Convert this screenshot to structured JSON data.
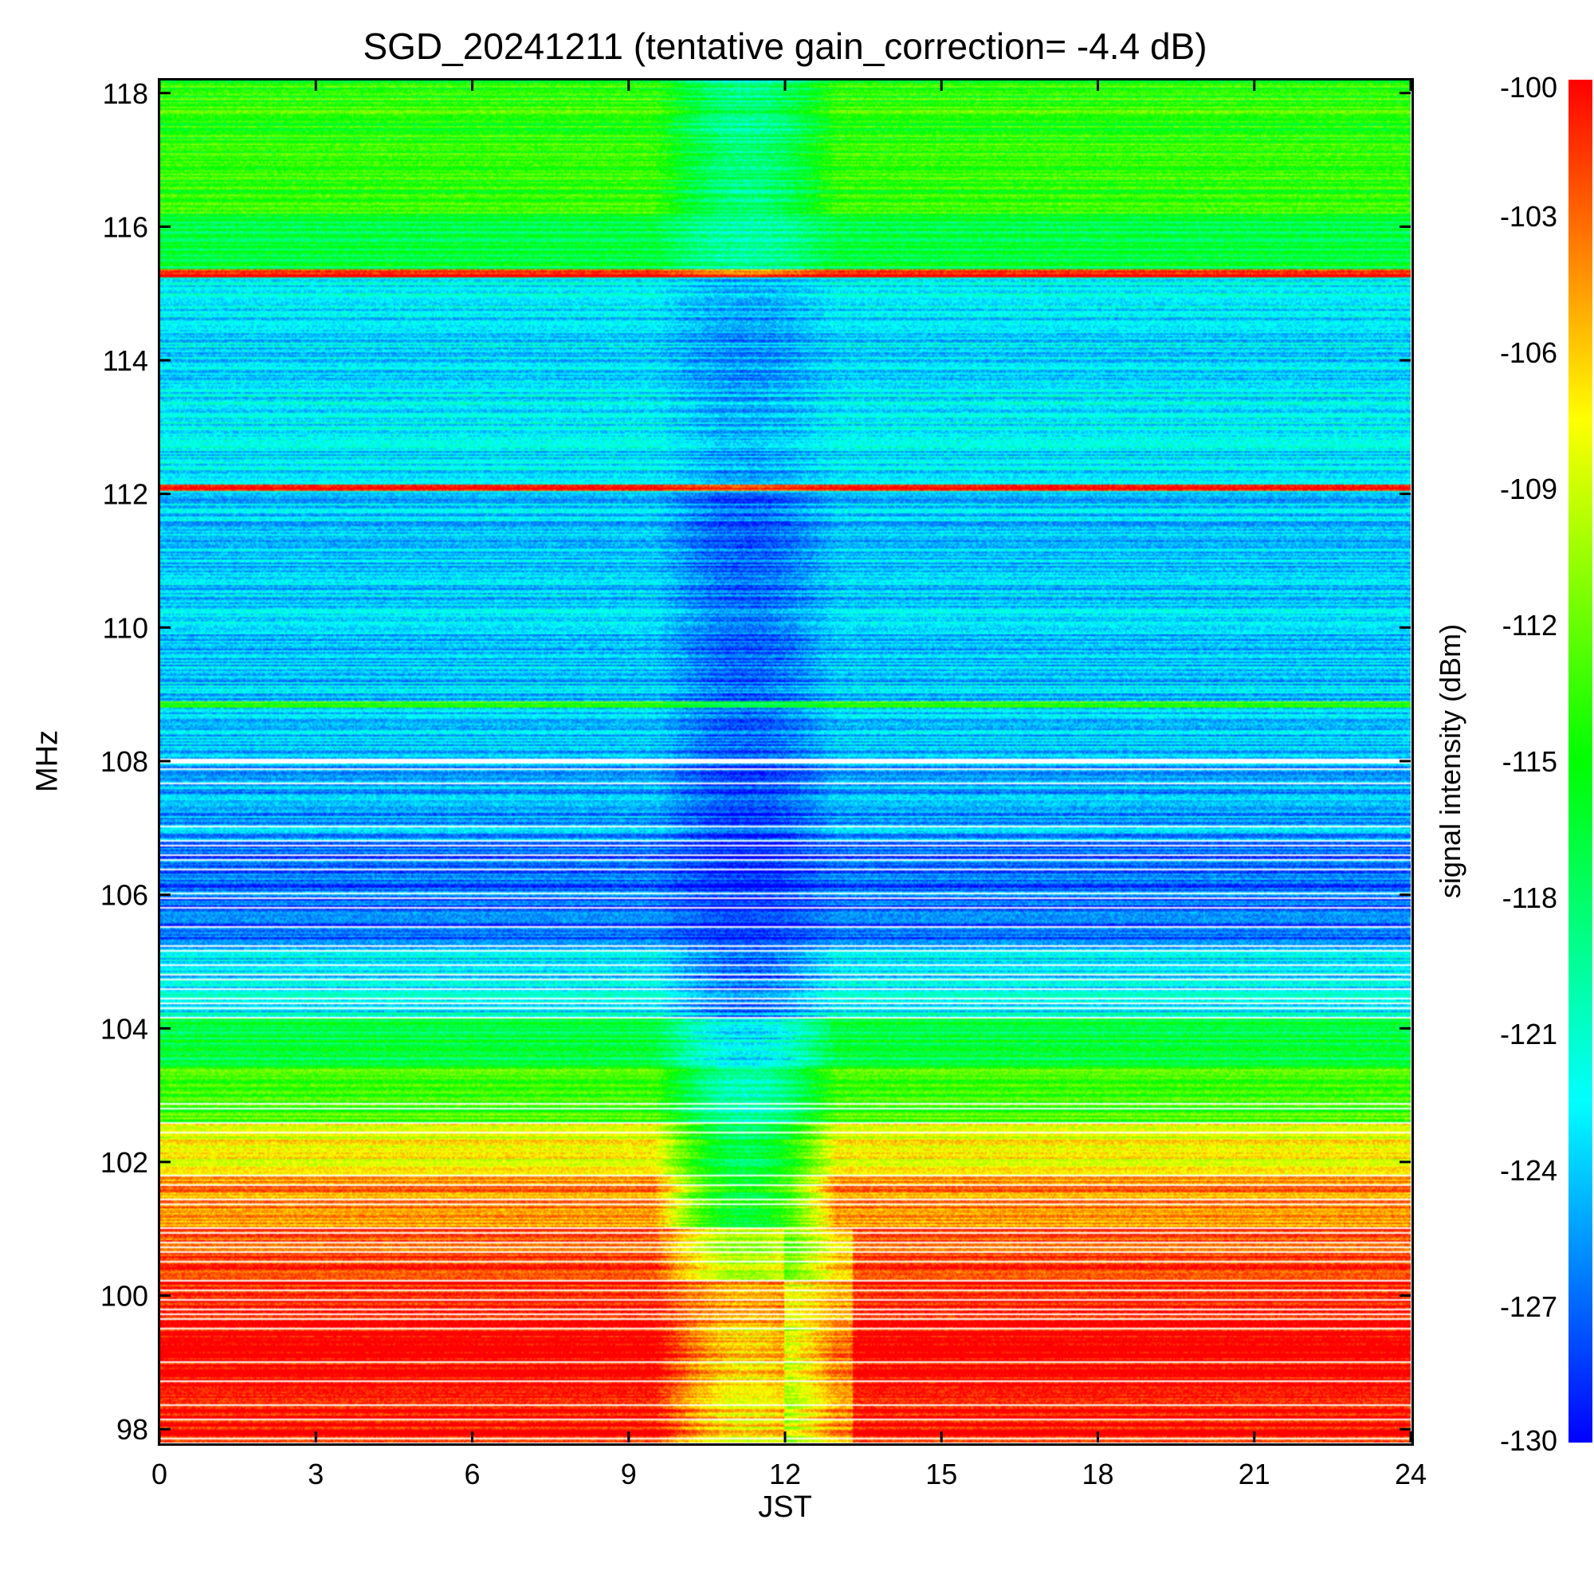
{
  "chart_data": {
    "type": "heatmap",
    "title": "SGD_20241211 (tentative gain_correction= -4.4 dB)",
    "xlabel": "JST",
    "ylabel": "MHz",
    "colorbar_label": "signal intensity (dBm)",
    "xlim": [
      0,
      24
    ],
    "ylim": [
      97.8,
      118.2
    ],
    "x_ticks": [
      0,
      3,
      6,
      9,
      12,
      15,
      18,
      21,
      24
    ],
    "y_ticks": [
      98,
      100,
      102,
      104,
      106,
      108,
      110,
      112,
      114,
      116,
      118
    ],
    "colorbar_range": [
      -130,
      -100
    ],
    "colorbar_ticks": [
      -100,
      -103,
      -106,
      -109,
      -112,
      -115,
      -118,
      -121,
      -124,
      -127,
      -130
    ],
    "colormap": [
      "#0000ff",
      "#0080ff",
      "#00ffff",
      "#00ff80",
      "#00ff00",
      "#80ff00",
      "#ffff00",
      "#ff8000",
      "#ff0000"
    ],
    "bands": [
      {
        "f_min": 97.8,
        "f_max": 99.6,
        "level": -100,
        "midday_dip": 7
      },
      {
        "f_min": 99.6,
        "f_max": 100.2,
        "level": -101,
        "midday_dip": 4
      },
      {
        "f_min": 100.2,
        "f_max": 101.0,
        "level": -102,
        "midday_dip": 8
      },
      {
        "f_min": 101.0,
        "f_max": 101.8,
        "level": -104,
        "midday_dip": 12
      },
      {
        "f_min": 101.8,
        "f_max": 102.6,
        "level": -108,
        "midday_dip": 10
      },
      {
        "f_min": 102.6,
        "f_max": 103.4,
        "level": -113,
        "midday_dip": 7
      },
      {
        "f_min": 103.4,
        "f_max": 104.2,
        "level": -117,
        "midday_dip": 6
      },
      {
        "f_min": 104.2,
        "f_max": 105.2,
        "level": -123,
        "midday_dip": 4
      },
      {
        "f_min": 105.2,
        "f_max": 106.8,
        "level": -127,
        "midday_dip": 2
      },
      {
        "f_min": 106.8,
        "f_max": 108.0,
        "level": -125,
        "midday_dip": 3
      },
      {
        "f_min": 108.0,
        "f_max": 112.0,
        "level": -124,
        "midday_dip": 3
      },
      {
        "f_min": 112.0,
        "f_max": 115.3,
        "level": -123,
        "midday_dip": 2
      },
      {
        "f_min": 115.3,
        "f_max": 116.2,
        "level": -117,
        "midday_dip": 3
      },
      {
        "f_min": 116.2,
        "f_max": 118.2,
        "level": -114,
        "midday_dip": 5
      }
    ],
    "strong_lines": [
      {
        "freq": 115.3,
        "level": -100
      },
      {
        "freq": 112.1,
        "level": -100
      },
      {
        "freq": 108.85,
        "level": -114
      },
      {
        "freq": 104.2,
        "level": -121
      }
    ],
    "data_gap_freq": 108.0,
    "midday_transition_jst": [
      9.5,
      13.0
    ]
  }
}
